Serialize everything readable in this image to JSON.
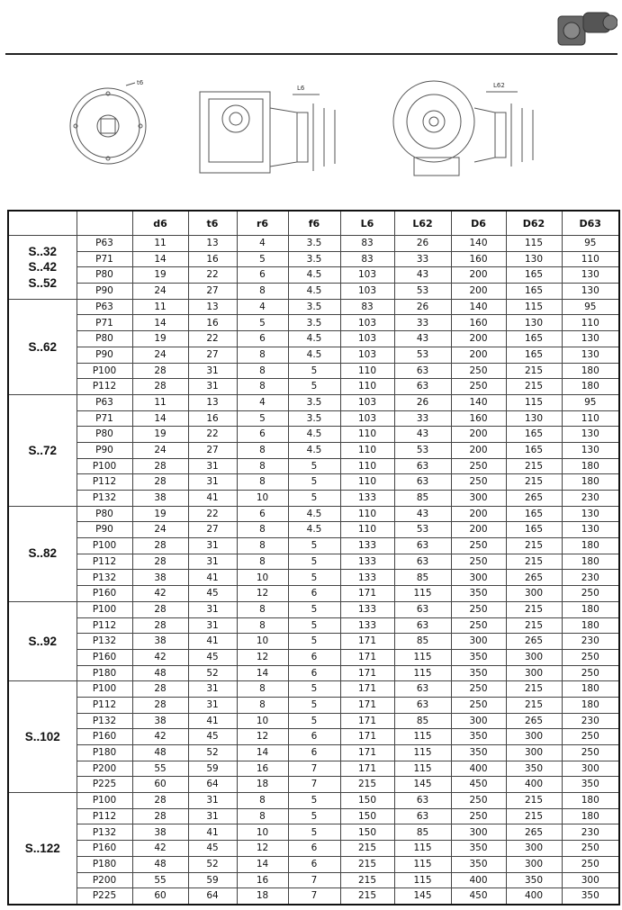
{
  "drawings": {
    "labels": [
      "t6",
      "L6",
      "L62"
    ]
  },
  "table": {
    "header": [
      "d6",
      "t6",
      "r6",
      "f6",
      "L6",
      "L62",
      "D6",
      "D62",
      "D63"
    ],
    "groups": [
      {
        "labels": [
          "S..32",
          "S..42",
          "S..52"
        ],
        "rows": [
          [
            "P63",
            11,
            13,
            4,
            3.5,
            83,
            26,
            140,
            115,
            95
          ],
          [
            "P71",
            14,
            16,
            5,
            3.5,
            83,
            33,
            160,
            130,
            110
          ],
          [
            "P80",
            19,
            22,
            6,
            4.5,
            103,
            43,
            200,
            165,
            130
          ],
          [
            "P90",
            24,
            27,
            8,
            4.5,
            103,
            53,
            200,
            165,
            130
          ]
        ]
      },
      {
        "labels": [
          "S..62"
        ],
        "rows": [
          [
            "P63",
            11,
            13,
            4,
            3.5,
            83,
            26,
            140,
            115,
            95
          ],
          [
            "P71",
            14,
            16,
            5,
            3.5,
            103,
            33,
            160,
            130,
            110
          ],
          [
            "P80",
            19,
            22,
            6,
            4.5,
            103,
            43,
            200,
            165,
            130
          ],
          [
            "P90",
            24,
            27,
            8,
            4.5,
            103,
            53,
            200,
            165,
            130
          ],
          [
            "P100",
            28,
            31,
            8,
            5,
            110,
            63,
            250,
            215,
            180
          ],
          [
            "P112",
            28,
            31,
            8,
            5,
            110,
            63,
            250,
            215,
            180
          ]
        ]
      },
      {
        "labels": [
          "S..72"
        ],
        "rows": [
          [
            "P63",
            11,
            13,
            4,
            3.5,
            103,
            26,
            140,
            115,
            95
          ],
          [
            "P71",
            14,
            16,
            5,
            3.5,
            103,
            33,
            160,
            130,
            110
          ],
          [
            "P80",
            19,
            22,
            6,
            4.5,
            110,
            43,
            200,
            165,
            130
          ],
          [
            "P90",
            24,
            27,
            8,
            4.5,
            110,
            53,
            200,
            165,
            130
          ],
          [
            "P100",
            28,
            31,
            8,
            5,
            110,
            63,
            250,
            215,
            180
          ],
          [
            "P112",
            28,
            31,
            8,
            5,
            110,
            63,
            250,
            215,
            180
          ],
          [
            "P132",
            38,
            41,
            10,
            5,
            133,
            85,
            300,
            265,
            230
          ]
        ]
      },
      {
        "labels": [
          "S..82"
        ],
        "rows": [
          [
            "P80",
            19,
            22,
            6,
            4.5,
            110,
            43,
            200,
            165,
            130
          ],
          [
            "P90",
            24,
            27,
            8,
            4.5,
            110,
            53,
            200,
            165,
            130
          ],
          [
            "P100",
            28,
            31,
            8,
            5,
            133,
            63,
            250,
            215,
            180
          ],
          [
            "P112",
            28,
            31,
            8,
            5,
            133,
            63,
            250,
            215,
            180
          ],
          [
            "P132",
            38,
            41,
            10,
            5,
            133,
            85,
            300,
            265,
            230
          ],
          [
            "P160",
            42,
            45,
            12,
            6,
            171,
            115,
            350,
            300,
            250
          ]
        ]
      },
      {
        "labels": [
          "S..92"
        ],
        "rows": [
          [
            "P100",
            28,
            31,
            8,
            5,
            133,
            63,
            250,
            215,
            180
          ],
          [
            "P112",
            28,
            31,
            8,
            5,
            133,
            63,
            250,
            215,
            180
          ],
          [
            "P132",
            38,
            41,
            10,
            5,
            171,
            85,
            300,
            265,
            230
          ],
          [
            "P160",
            42,
            45,
            12,
            6,
            171,
            115,
            350,
            300,
            250
          ],
          [
            "P180",
            48,
            52,
            14,
            6,
            171,
            115,
            350,
            300,
            250
          ]
        ]
      },
      {
        "labels": [
          "S..102"
        ],
        "rows": [
          [
            "P100",
            28,
            31,
            8,
            5,
            171,
            63,
            250,
            215,
            180
          ],
          [
            "P112",
            28,
            31,
            8,
            5,
            171,
            63,
            250,
            215,
            180
          ],
          [
            "P132",
            38,
            41,
            10,
            5,
            171,
            85,
            300,
            265,
            230
          ],
          [
            "P160",
            42,
            45,
            12,
            6,
            171,
            115,
            350,
            300,
            250
          ],
          [
            "P180",
            48,
            52,
            14,
            6,
            171,
            115,
            350,
            300,
            250
          ],
          [
            "P200",
            55,
            59,
            16,
            7,
            171,
            115,
            400,
            350,
            300
          ],
          [
            "P225",
            60,
            64,
            18,
            7,
            215,
            145,
            450,
            400,
            350
          ]
        ]
      },
      {
        "labels": [
          "S..122"
        ],
        "rows": [
          [
            "P100",
            28,
            31,
            8,
            5,
            150,
            63,
            250,
            215,
            180
          ],
          [
            "P112",
            28,
            31,
            8,
            5,
            150,
            63,
            250,
            215,
            180
          ],
          [
            "P132",
            38,
            41,
            10,
            5,
            150,
            85,
            300,
            265,
            230
          ],
          [
            "P160",
            42,
            45,
            12,
            6,
            215,
            115,
            350,
            300,
            250
          ],
          [
            "P180",
            48,
            52,
            14,
            6,
            215,
            115,
            350,
            300,
            250
          ],
          [
            "P200",
            55,
            59,
            16,
            7,
            215,
            115,
            400,
            350,
            300
          ],
          [
            "P225",
            60,
            64,
            18,
            7,
            215,
            145,
            450,
            400,
            350
          ]
        ]
      }
    ]
  }
}
